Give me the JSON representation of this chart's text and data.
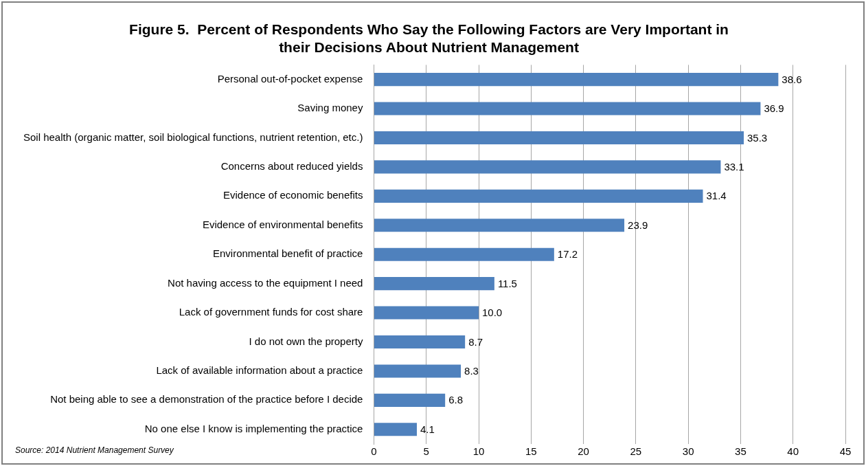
{
  "chart_data": {
    "type": "bar",
    "orientation": "horizontal",
    "title": "Figure 5.  Percent of Respondents Who Say the Following Factors are Very Important in\ntheir Decisions About Nutrient Management",
    "categories": [
      "Personal out-of-pocket expense",
      "Saving money",
      "Soil health (organic matter, soil biological functions, nutrient retention, etc.)",
      "Concerns about reduced yields",
      "Evidence of economic benefits",
      "Evidence of environmental benefits",
      "Environmental benefit of practice",
      "Not having access to the equipment I need",
      "Lack of government funds for cost share",
      "I do not own the property",
      "Lack of available information about a practice",
      "Not being able to see a demonstration of the practice before I decide",
      "No one else I know is implementing the practice"
    ],
    "values": [
      38.6,
      36.9,
      35.3,
      33.1,
      31.4,
      23.9,
      17.2,
      11.5,
      10.0,
      8.7,
      8.3,
      6.8,
      4.1
    ],
    "value_labels": [
      "38.6",
      "36.9",
      "35.3",
      "33.1",
      "31.4",
      "23.9",
      "17.2",
      "11.5",
      "10.0",
      "8.7",
      "8.3",
      "6.8",
      "4.1"
    ],
    "color": "#4f81bd",
    "xlim": [
      0,
      45
    ],
    "xticks": [
      0,
      5,
      10,
      15,
      20,
      25,
      30,
      35,
      40,
      45
    ],
    "grid": "x",
    "annotations": [
      "Source: 2014 Nutrient Management Survey"
    ]
  }
}
